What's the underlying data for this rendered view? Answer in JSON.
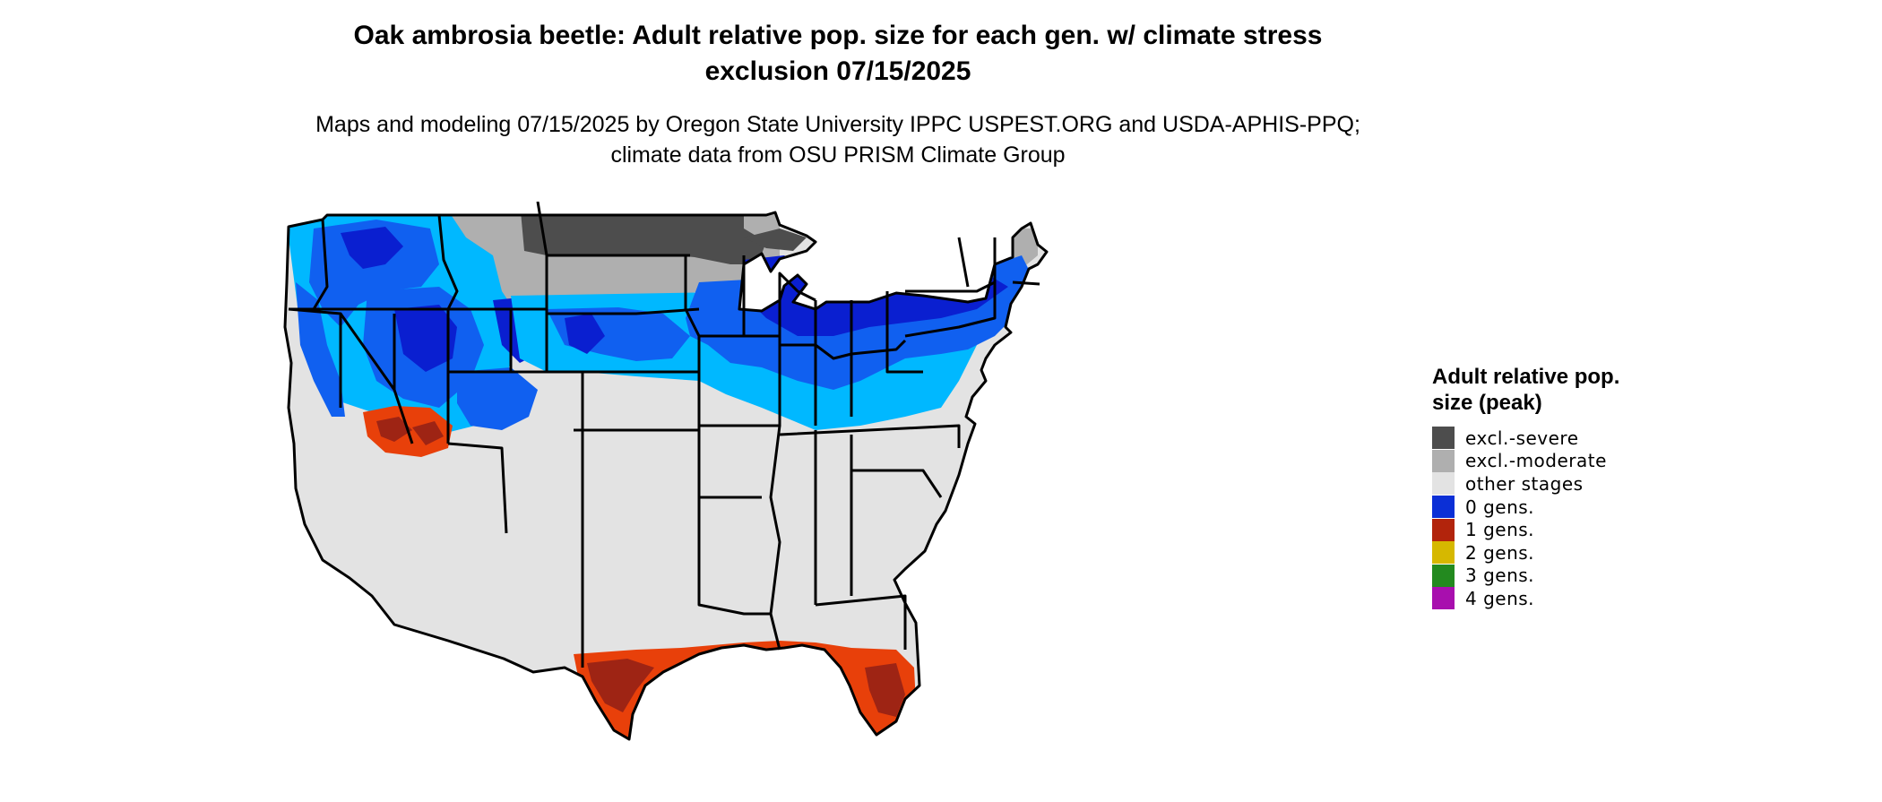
{
  "title": "Oak ambrosia beetle: Adult relative pop. size for each gen. w/ climate stress exclusion 07/15/2025",
  "subtitle": "Maps and modeling 07/15/2025 by Oregon State University IPPC USPEST.ORG and USDA-APHIS-PPQ; climate data from OSU PRISM Climate Group",
  "legend": {
    "title": "Adult relative pop. size (peak)",
    "items": [
      {
        "label": "excl.-severe",
        "color": "#4d4d4d"
      },
      {
        "label": "excl.-moderate",
        "color": "#afafaf"
      },
      {
        "label": "other stages",
        "color": "#e3e3e3"
      },
      {
        "label": "0 gens.",
        "color": "#0b2fd6"
      },
      {
        "label": "1 gens.",
        "color": "#b2240c"
      },
      {
        "label": "2 gens.",
        "color": "#d6b800"
      },
      {
        "label": "3 gens.",
        "color": "#238a1f"
      },
      {
        "label": "4 gens.",
        "color": "#a80fae"
      }
    ]
  },
  "map_colors": {
    "states_fill": "#e3e3e3",
    "excl_severe": "#4d4d4d",
    "excl_moderate": "#afafaf",
    "blue_deep": "#0a1fd0",
    "blue_mid": "#1060f0",
    "blue_light": "#00b8ff",
    "red_dark": "#9e2414",
    "red_orange": "#e8400a",
    "border": "#000000"
  }
}
